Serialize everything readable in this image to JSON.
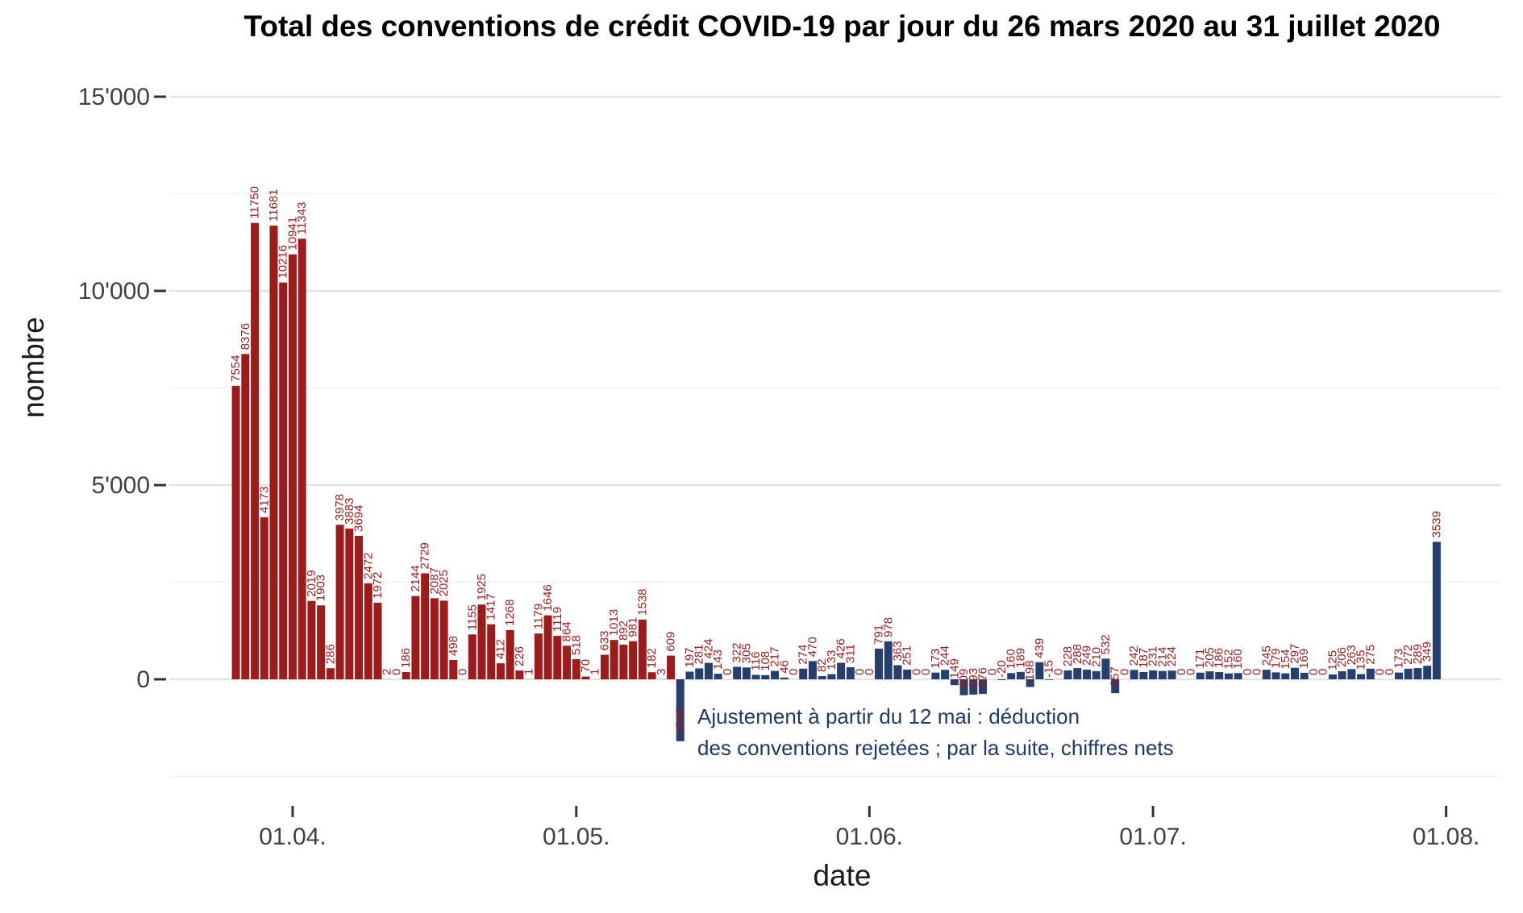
{
  "chart_data": {
    "type": "bar",
    "title": "Total des conventions de crédit COVID-19 par jour du 26 mars 2020 au 31 juillet 2020",
    "xlabel": "date",
    "ylabel": "nombre",
    "grid": true,
    "legend": "none",
    "ylim": [
      -3300,
      15800
    ],
    "y_ticks": [
      {
        "value": 0,
        "label": "0"
      },
      {
        "value": 5000,
        "label": "5'000"
      },
      {
        "value": 10000,
        "label": "10'000"
      },
      {
        "value": 15000,
        "label": "15'000"
      }
    ],
    "y_minor_gridlines": [
      -2500,
      2500,
      7500,
      12500
    ],
    "x_ticks": [
      {
        "day_index": 6,
        "label": "01.04."
      },
      {
        "day_index": 36,
        "label": "01.05."
      },
      {
        "day_index": 67,
        "label": "01.06."
      },
      {
        "day_index": 97,
        "label": "01.07."
      },
      {
        "day_index": 128,
        "label": "01.08."
      }
    ],
    "series": [
      {
        "id": "pre-adjustment-gross",
        "color": "#9E1B1B",
        "values": [
          7554,
          8376,
          11750,
          4173,
          11681,
          10216,
          10941,
          11343,
          2019,
          1903,
          286,
          3978,
          3883,
          3694,
          2472,
          1972,
          2,
          0,
          186,
          2144,
          2729,
          2087,
          2025,
          498,
          0,
          1155,
          1925,
          1417,
          412,
          1268,
          226,
          1,
          1179,
          1646,
          1119,
          864,
          518,
          70,
          1,
          633,
          1013,
          892,
          981,
          1538,
          182,
          3,
          609
        ]
      },
      {
        "id": "post-adjustment-net",
        "color": "#25406E",
        "values": [
          -1595,
          197,
          281,
          424,
          143,
          0,
          322,
          305,
          116,
          108,
          217,
          46,
          0,
          274,
          470,
          82,
          133,
          426,
          311,
          0,
          0,
          791,
          978,
          363,
          251,
          0,
          0,
          173,
          244,
          -149,
          -409,
          -393,
          -376,
          0,
          -20,
          160,
          189,
          -198,
          439,
          -15,
          0,
          228,
          288,
          249,
          210,
          532,
          -357,
          0,
          242,
          187,
          231,
          214,
          224,
          0,
          0,
          171,
          205,
          186,
          152,
          160,
          0,
          0,
          245,
          179,
          154,
          297,
          169,
          0,
          0,
          125,
          206,
          263,
          135,
          275,
          0,
          0,
          173,
          272,
          289,
          349,
          3539
        ]
      }
    ],
    "annotation": {
      "line1": "Ajustement à partir du 12 mai : déduction",
      "line2": "des conventions rejetées ; par la suite, chiffres nets",
      "color": "#1F3968"
    },
    "bar_label_color": "#9E1B1B",
    "axis_text_color": "#404040",
    "major_grid_color": "#E3E3E3",
    "minor_grid_color": "#F0F0F0",
    "tick_mark_color": "#333333"
  }
}
